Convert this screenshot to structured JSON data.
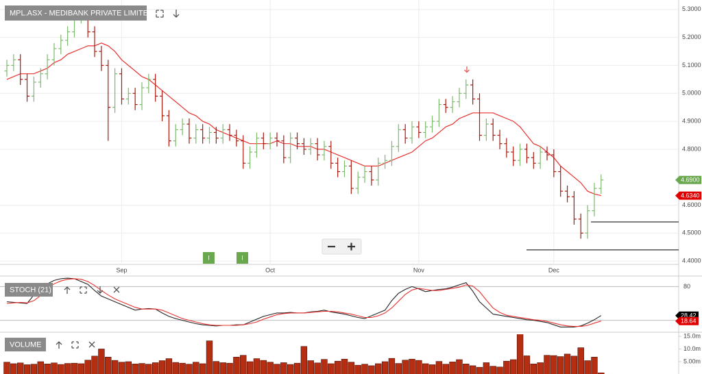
{
  "chart_data": [
    {
      "type": "ohlc",
      "title": "MPL.ASX - MEDIBANK PRIVATE LIMITED",
      "categories": [
        null,
        null,
        null,
        null,
        null,
        null,
        null,
        null,
        null,
        null,
        null,
        null,
        null,
        null,
        null,
        null,
        null,
        "Sep",
        null,
        null,
        null,
        null,
        null,
        null,
        null,
        null,
        null,
        null,
        null,
        null,
        null,
        null,
        null,
        null,
        null,
        null,
        null,
        null,
        null,
        "Oct",
        null,
        null,
        null,
        null,
        null,
        null,
        null,
        null,
        null,
        null,
        null,
        null,
        null,
        null,
        null,
        null,
        null,
        null,
        null,
        null,
        null,
        "Nov",
        null,
        null,
        null,
        null,
        null,
        null,
        null,
        null,
        null,
        null,
        null,
        null,
        null,
        null,
        null,
        null,
        null,
        null,
        null,
        "Dec",
        null,
        null,
        null,
        null,
        null,
        null,
        null
      ],
      "open": [
        5.08,
        5.1,
        5.12,
        5.05,
        4.99,
        5.04,
        5.07,
        5.12,
        5.16,
        5.19,
        5.22,
        5.27,
        5.29,
        5.22,
        5.15,
        5.1,
        4.95,
        5.07,
        4.98,
        5.0,
        4.96,
        5.02,
        5.05,
        4.99,
        4.92,
        4.83,
        4.87,
        4.89,
        4.84,
        4.87,
        4.84,
        4.86,
        4.84,
        4.87,
        4.85,
        4.83,
        4.75,
        4.79,
        4.84,
        4.82,
        4.84,
        4.83,
        4.77,
        4.84,
        4.82,
        4.8,
        4.82,
        4.78,
        4.81,
        4.75,
        4.72,
        4.74,
        4.66,
        4.7,
        4.72,
        4.69,
        4.75,
        4.76,
        4.81,
        4.87,
        4.84,
        4.88,
        4.86,
        4.88,
        4.9,
        4.96,
        4.95,
        4.97,
        5.0,
        5.03,
        4.98,
        4.85,
        4.89,
        4.85,
        4.82,
        4.79,
        4.76,
        4.8,
        4.77,
        4.75,
        4.79,
        4.78,
        4.72,
        4.65,
        4.63,
        4.55,
        4.5,
        4.58,
        4.66
      ],
      "high": [
        5.12,
        5.14,
        5.14,
        5.07,
        5.06,
        5.09,
        5.14,
        5.18,
        5.21,
        5.24,
        5.29,
        5.31,
        5.31,
        5.24,
        5.17,
        5.12,
        5.09,
        5.09,
        5.02,
        5.02,
        5.04,
        5.07,
        5.07,
        5.01,
        4.94,
        4.89,
        4.91,
        4.91,
        4.89,
        4.89,
        4.88,
        4.88,
        4.89,
        4.89,
        4.87,
        4.85,
        4.81,
        4.86,
        4.86,
        4.86,
        4.86,
        4.85,
        4.86,
        4.86,
        4.84,
        4.84,
        4.84,
        4.83,
        4.83,
        4.77,
        4.76,
        4.76,
        4.72,
        4.74,
        4.74,
        4.77,
        4.78,
        4.83,
        4.89,
        4.89,
        4.9,
        4.9,
        4.9,
        4.92,
        4.98,
        4.98,
        4.99,
        5.02,
        5.05,
        5.05,
        5.0,
        4.91,
        4.91,
        4.87,
        4.84,
        4.81,
        4.82,
        4.82,
        4.79,
        4.81,
        4.81,
        4.8,
        4.74,
        4.67,
        4.65,
        4.57,
        4.6,
        4.68,
        4.71
      ],
      "low": [
        5.06,
        5.08,
        5.03,
        4.97,
        4.97,
        5.02,
        5.05,
        5.1,
        5.14,
        5.17,
        5.2,
        5.25,
        5.2,
        5.13,
        5.08,
        4.83,
        4.93,
        4.96,
        4.96,
        4.94,
        4.94,
        5.0,
        4.97,
        4.9,
        4.81,
        4.81,
        4.85,
        4.82,
        4.82,
        4.82,
        4.82,
        4.82,
        4.82,
        4.83,
        4.81,
        4.73,
        4.73,
        4.77,
        4.8,
        4.8,
        4.81,
        4.75,
        4.75,
        4.8,
        4.78,
        4.78,
        4.76,
        4.76,
        4.73,
        4.7,
        4.7,
        4.64,
        4.64,
        4.68,
        4.67,
        4.67,
        4.73,
        4.74,
        4.79,
        4.82,
        4.82,
        4.84,
        4.84,
        4.86,
        4.88,
        4.93,
        4.93,
        4.95,
        4.98,
        4.96,
        4.83,
        4.83,
        4.83,
        4.8,
        4.77,
        4.74,
        4.74,
        4.75,
        4.73,
        4.73,
        4.76,
        4.7,
        4.63,
        4.61,
        4.53,
        4.48,
        4.48,
        4.56,
        4.64
      ],
      "close": [
        5.1,
        5.12,
        5.05,
        4.99,
        5.04,
        5.07,
        5.12,
        5.16,
        5.19,
        5.22,
        5.27,
        5.29,
        5.22,
        5.15,
        5.1,
        4.95,
        5.07,
        4.98,
        5.0,
        4.96,
        5.02,
        5.05,
        4.99,
        4.92,
        4.83,
        4.87,
        4.89,
        4.84,
        4.87,
        4.84,
        4.86,
        4.84,
        4.87,
        4.85,
        4.83,
        4.75,
        4.79,
        4.84,
        4.82,
        4.84,
        4.83,
        4.77,
        4.84,
        4.82,
        4.8,
        4.82,
        4.78,
        4.81,
        4.75,
        4.72,
        4.74,
        4.66,
        4.7,
        4.72,
        4.69,
        4.75,
        4.76,
        4.81,
        4.87,
        4.84,
        4.88,
        4.86,
        4.88,
        4.9,
        4.96,
        4.95,
        4.97,
        5.0,
        5.03,
        4.98,
        4.85,
        4.89,
        4.85,
        4.82,
        4.79,
        4.76,
        4.8,
        4.77,
        4.75,
        4.79,
        4.78,
        4.72,
        4.65,
        4.63,
        4.55,
        4.5,
        4.58,
        4.66,
        4.69
      ],
      "up_color": "#7cb96c",
      "down_color": "#a8180c",
      "overlay": {
        "color": "#e8302e",
        "values": [
          5.05,
          5.06,
          5.07,
          5.07,
          5.07,
          5.08,
          5.09,
          5.11,
          5.12,
          5.14,
          5.15,
          5.16,
          5.17,
          5.17,
          5.18,
          5.17,
          5.15,
          5.12,
          5.1,
          5.08,
          5.06,
          5.05,
          5.03,
          5.01,
          4.99,
          4.97,
          4.95,
          4.93,
          4.92,
          4.9,
          4.89,
          4.87,
          4.86,
          4.85,
          4.84,
          4.83,
          4.82,
          4.82,
          4.82,
          4.82,
          4.83,
          4.82,
          4.82,
          4.81,
          4.81,
          4.81,
          4.8,
          4.8,
          4.79,
          4.78,
          4.77,
          4.76,
          4.75,
          4.74,
          4.74,
          4.74,
          4.75,
          4.76,
          4.77,
          4.78,
          4.79,
          4.81,
          4.83,
          4.84,
          4.86,
          4.88,
          4.89,
          4.91,
          4.92,
          4.93,
          4.93,
          4.93,
          4.93,
          4.92,
          4.91,
          4.9,
          4.88,
          4.85,
          4.82,
          4.81,
          4.79,
          4.77,
          4.74,
          4.72,
          4.7,
          4.68,
          4.65,
          4.64,
          4.634
        ]
      },
      "ylim": [
        4.388,
        5.334
      ],
      "yticks": [
        {
          "value": 5.3,
          "label": "5.3000"
        },
        {
          "value": 5.2,
          "label": "5.2000"
        },
        {
          "value": 5.1,
          "label": "5.1000"
        },
        {
          "value": 5.0,
          "label": "5.0000"
        },
        {
          "value": 4.9,
          "label": "4.9000"
        },
        {
          "value": 4.8,
          "label": "4.8000"
        },
        {
          "value": 4.6,
          "label": "4.6000"
        },
        {
          "value": 4.5,
          "label": "4.5000"
        },
        {
          "value": 4.4,
          "label": "4.4000"
        }
      ],
      "grid": true,
      "price_tags": [
        {
          "value": 4.69,
          "label": "4.6900",
          "color": "#6aa84f"
        },
        {
          "value": 4.634,
          "label": "4.6340",
          "color": "#e00000"
        }
      ],
      "levels": [
        4.54,
        4.44
      ],
      "events": [
        "I",
        "I"
      ]
    },
    {
      "type": "line",
      "title": "STOCH (21)",
      "series": [
        {
          "color": "#222222",
          "values": [
            53,
            52,
            51,
            50,
            65,
            78,
            85,
            91,
            94,
            95,
            94,
            89,
            84,
            73,
            63,
            58,
            53,
            48,
            43,
            38,
            40,
            41,
            40,
            33,
            27,
            23,
            20,
            17,
            14,
            12,
            11,
            10,
            11,
            11,
            12,
            12,
            17,
            22,
            27,
            30,
            33,
            33,
            34,
            33,
            33,
            35,
            36,
            38,
            35,
            33,
            31,
            28,
            25,
            23,
            28,
            33,
            38,
            55,
            68,
            75,
            80,
            76,
            71,
            73,
            75,
            76,
            79,
            83,
            87,
            72,
            53,
            42,
            31,
            29,
            27,
            25,
            23,
            21,
            20,
            18,
            16,
            12,
            8,
            8,
            8,
            10,
            15,
            21,
            28.42
          ]
        },
        {
          "color": "#e8302e",
          "values": [
            50,
            51,
            52,
            51,
            55,
            64,
            76,
            85,
            90,
            93,
            94,
            93,
            89,
            82,
            73,
            65,
            58,
            53,
            48,
            43,
            40,
            40,
            40,
            38,
            33,
            28,
            23,
            20,
            17,
            14,
            12,
            11,
            11,
            11,
            11,
            12,
            14,
            17,
            22,
            26,
            30,
            32,
            33,
            33,
            33,
            34,
            35,
            36,
            36,
            35,
            33,
            31,
            28,
            25,
            25,
            28,
            33,
            42,
            54,
            66,
            74,
            77,
            75,
            73,
            73,
            75,
            77,
            79,
            83,
            81,
            71,
            56,
            42,
            34,
            29,
            27,
            25,
            23,
            21,
            20,
            18,
            15,
            12,
            10,
            9,
            9,
            11,
            15,
            18.64
          ]
        }
      ],
      "ylim": [
        0,
        100
      ],
      "yticks": [
        80
      ],
      "guide_lines": [
        20
      ],
      "tags": [
        {
          "value": 28.42,
          "label": "28.42",
          "color": "#000000"
        },
        {
          "value": 18.64,
          "label": "18.64",
          "color": "#e00000"
        }
      ]
    },
    {
      "type": "bar",
      "title": "VOLUME",
      "color": "#b52e12",
      "values": [
        4.8,
        4.2,
        4.5,
        3.8,
        4.0,
        5.0,
        4.1,
        4.5,
        3.9,
        4.3,
        4.4,
        4.2,
        5.6,
        7.2,
        10.0,
        6.8,
        5.5,
        4.8,
        5.0,
        4.1,
        4.3,
        4.0,
        4.6,
        5.4,
        6.2,
        4.7,
        4.4,
        4.0,
        4.8,
        4.2,
        13.2,
        5.1,
        4.6,
        4.4,
        6.8,
        7.5,
        5.0,
        6.2,
        5.5,
        4.8,
        4.0,
        4.6,
        3.9,
        4.4,
        11.0,
        5.4,
        4.5,
        5.9,
        4.2,
        5.2,
        6.0,
        4.8,
        3.6,
        4.0,
        3.4,
        4.2,
        5.0,
        6.3,
        4.3,
        5.6,
        6.0,
        5.5,
        4.2,
        3.8,
        5.1,
        4.0,
        4.9,
        5.8,
        4.1,
        3.4,
        2.8,
        4.6,
        3.2,
        2.9,
        5.2,
        5.8,
        16.9,
        7.3,
        4.1,
        4.6,
        7.5,
        7.4,
        7.0,
        8.0,
        7.2,
        10.5,
        5.4,
        6.8,
        0.6
      ],
      "ylim": [
        0,
        15.8
      ],
      "yticks": [
        {
          "value": 15,
          "label": "15.0m"
        },
        {
          "value": 10,
          "label": "10.0m"
        },
        {
          "value": 5,
          "label": "5.00m"
        }
      ]
    }
  ]
}
